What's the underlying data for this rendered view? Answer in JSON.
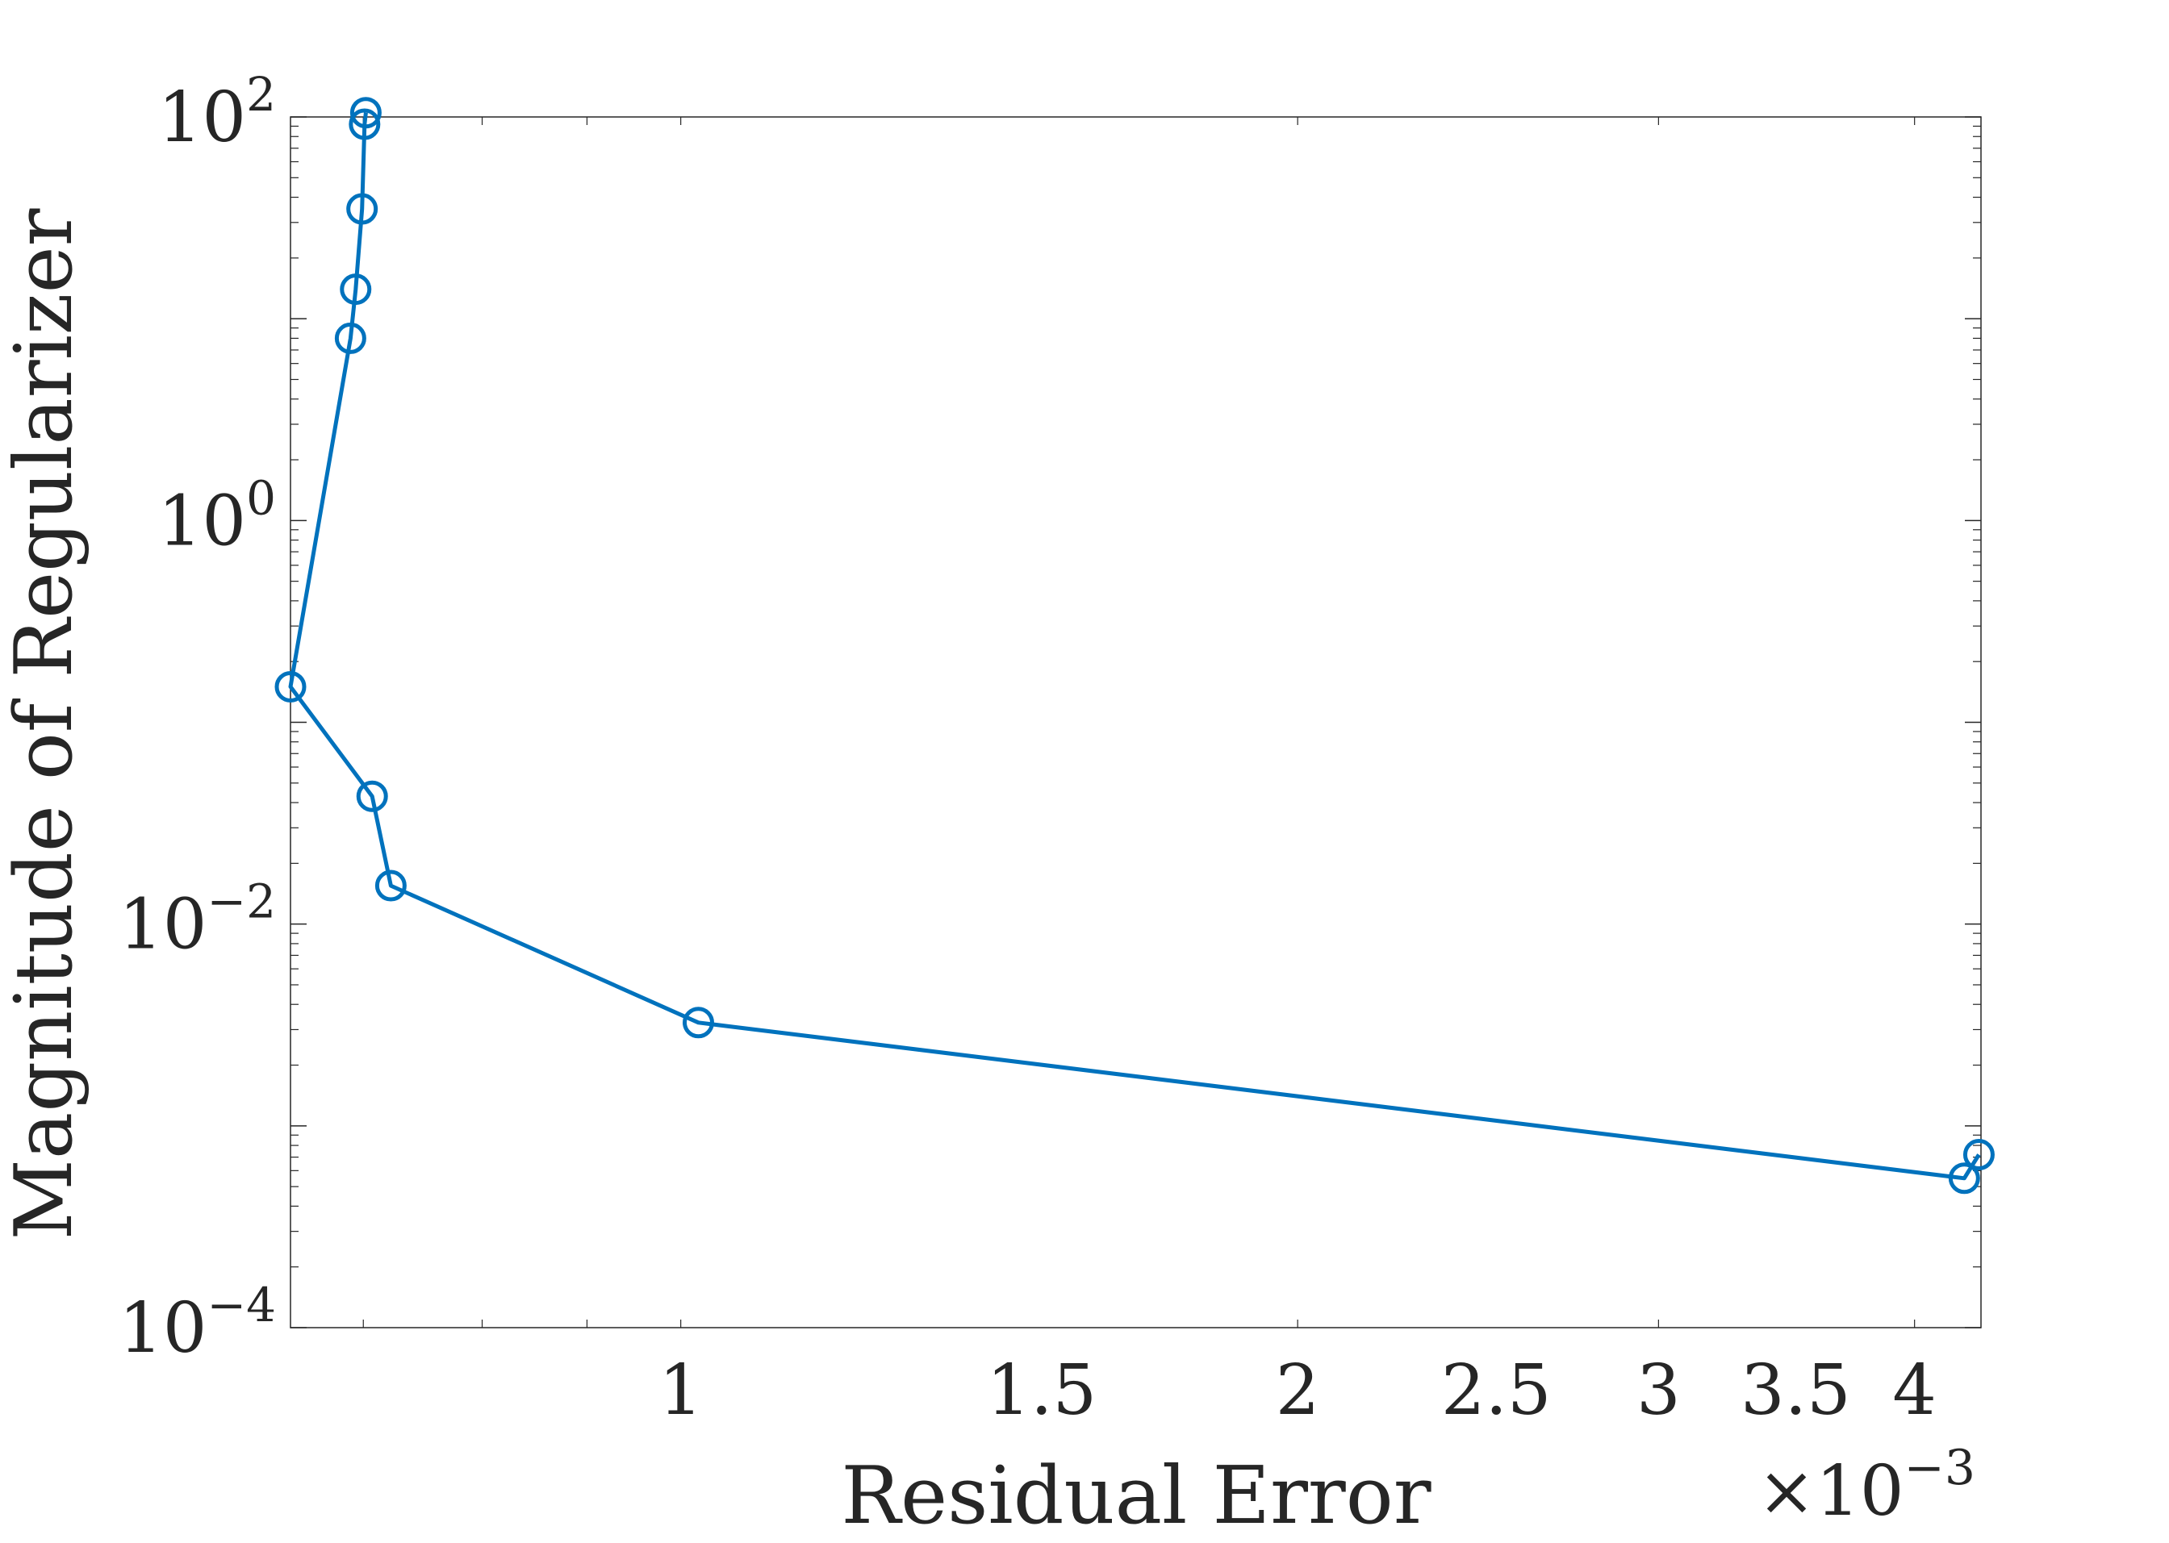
{
  "chart_data": {
    "type": "line",
    "title": "",
    "xlabel": "Residual Error",
    "ylabel": "Magnitude of Regularizer",
    "x_scale": "log",
    "y_scale": "log",
    "x_multiplier_label": "×10",
    "x_multiplier_exponent": "−3",
    "xlim": [
      0.000645,
      0.00431
    ],
    "ylim": [
      0.0001,
      100
    ],
    "x_ticks": [
      {
        "value": 0.001,
        "label": "1"
      },
      {
        "value": 0.0015,
        "label": "1.5"
      },
      {
        "value": 0.002,
        "label": "2"
      },
      {
        "value": 0.0025,
        "label": "2.5"
      },
      {
        "value": 0.003,
        "label": "3"
      },
      {
        "value": 0.0035,
        "label": "3.5"
      },
      {
        "value": 0.004,
        "label": "4"
      }
    ],
    "y_ticks": [
      {
        "value": 0.0001,
        "base": "10",
        "exp": "−4"
      },
      {
        "value": 0.01,
        "base": "10",
        "exp": "−2"
      },
      {
        "value": 1,
        "base": "10",
        "exp": "0"
      },
      {
        "value": 100,
        "base": "10",
        "exp": "2"
      }
    ],
    "grid": false,
    "box": true,
    "series": [
      {
        "color": "#0072BD",
        "marker": "circle",
        "x": [
          0.000702,
          0.000701,
          0.000699,
          0.000694,
          0.00069,
          0.000645,
          0.000707,
          0.000722,
          0.00102,
          0.00423,
          0.0043
        ],
        "y": [
          105,
          92,
          35,
          14,
          8,
          0.15,
          0.043,
          0.0155,
          0.00325,
          0.00055,
          0.00072
        ]
      }
    ]
  }
}
